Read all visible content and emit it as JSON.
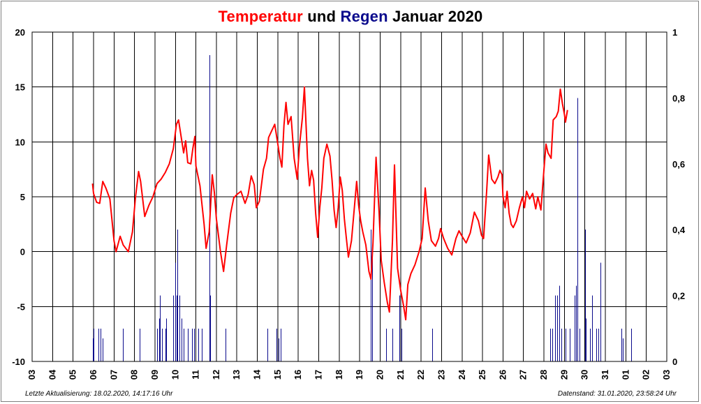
{
  "title": {
    "part1": "Temperatur",
    "part2": " und ",
    "part3": "Regen",
    "part4": " Januar 2020"
  },
  "colors": {
    "temperature": "#ff0000",
    "rain": "#0a0a8c",
    "grid": "#000000"
  },
  "footer": {
    "left": "Letzte Aktualisierung: 18.02.2020, 14:17:16 Uhr",
    "right": "Datenstand: 31.01.2020, 23:58:24 Uhr"
  },
  "chart_data": {
    "type": "line",
    "title": "Temperatur und Regen Januar 2020",
    "x_tick_labels": [
      "03",
      "04",
      "05",
      "06",
      "07",
      "08",
      "09",
      "10",
      "11",
      "12",
      "13",
      "14",
      "15",
      "16",
      "17",
      "18",
      "19",
      "20",
      "21",
      "22",
      "23",
      "24",
      "25",
      "26",
      "27",
      "28",
      "29",
      "30",
      "31",
      "01",
      "02",
      "03"
    ],
    "left_axis": {
      "ylim": [
        -10,
        20
      ],
      "ticks": [
        -10,
        -5,
        0,
        5,
        10,
        15,
        20
      ],
      "tick_labels": [
        "-10",
        "-5",
        "0",
        "5",
        "10",
        "15",
        "20"
      ]
    },
    "right_axis": {
      "ylim": [
        0,
        1
      ],
      "ticks": [
        0,
        0.2,
        0.4,
        0.6,
        0.8,
        1
      ],
      "tick_labels": [
        "0",
        "0,2",
        "0,4",
        "0,6",
        "0,8",
        "1"
      ]
    },
    "grid": true,
    "series": [
      {
        "name": "Temperatur",
        "axis": "left",
        "points": [
          [
            4.95,
            6.2
          ],
          [
            5.0,
            5.3
          ],
          [
            5.15,
            4.5
          ],
          [
            5.3,
            4.4
          ],
          [
            5.45,
            6.4
          ],
          [
            5.6,
            5.8
          ],
          [
            5.8,
            4.8
          ],
          [
            6.0,
            1.0
          ],
          [
            6.1,
            0.0
          ],
          [
            6.3,
            1.4
          ],
          [
            6.45,
            0.6
          ],
          [
            6.7,
            0.0
          ],
          [
            6.9,
            1.8
          ],
          [
            7.05,
            5.0
          ],
          [
            7.2,
            7.3
          ],
          [
            7.3,
            6.4
          ],
          [
            7.5,
            3.2
          ],
          [
            7.7,
            4.2
          ],
          [
            7.9,
            5.0
          ],
          [
            8.1,
            6.2
          ],
          [
            8.3,
            6.6
          ],
          [
            8.5,
            7.2
          ],
          [
            8.7,
            8.0
          ],
          [
            8.9,
            9.4
          ],
          [
            9.05,
            11.6
          ],
          [
            9.15,
            12.0
          ],
          [
            9.3,
            10.2
          ],
          [
            9.4,
            9.0
          ],
          [
            9.5,
            10.1
          ],
          [
            9.6,
            8.1
          ],
          [
            9.75,
            8.0
          ],
          [
            9.85,
            9.4
          ],
          [
            9.95,
            10.5
          ],
          [
            10.0,
            7.8
          ],
          [
            10.2,
            6.0
          ],
          [
            10.4,
            2.5
          ],
          [
            10.5,
            0.3
          ],
          [
            10.65,
            1.8
          ],
          [
            10.8,
            7.0
          ],
          [
            10.9,
            5.4
          ],
          [
            11.0,
            3.0
          ],
          [
            11.2,
            0.0
          ],
          [
            11.35,
            -1.8
          ],
          [
            11.5,
            0.6
          ],
          [
            11.7,
            3.5
          ],
          [
            11.85,
            4.9
          ],
          [
            12.0,
            5.2
          ],
          [
            12.2,
            5.5
          ],
          [
            12.4,
            4.4
          ],
          [
            12.55,
            5.2
          ],
          [
            12.7,
            6.9
          ],
          [
            12.85,
            6.1
          ],
          [
            12.95,
            4.0
          ],
          [
            13.1,
            4.6
          ],
          [
            13.3,
            7.5
          ],
          [
            13.45,
            8.5
          ],
          [
            13.55,
            10.4
          ],
          [
            13.7,
            11.0
          ],
          [
            13.85,
            11.6
          ],
          [
            14.0,
            9.8
          ],
          [
            14.1,
            8.6
          ],
          [
            14.2,
            7.7
          ],
          [
            14.3,
            11.5
          ],
          [
            14.4,
            13.6
          ],
          [
            14.5,
            11.6
          ],
          [
            14.65,
            12.3
          ],
          [
            14.8,
            8.5
          ],
          [
            14.95,
            6.6
          ],
          [
            15.05,
            9.5
          ],
          [
            15.2,
            12.2
          ],
          [
            15.3,
            15.0
          ],
          [
            15.45,
            8.5
          ],
          [
            15.55,
            6.0
          ],
          [
            15.65,
            7.4
          ],
          [
            15.75,
            6.5
          ],
          [
            15.85,
            3.5
          ],
          [
            15.95,
            1.3
          ],
          [
            16.05,
            4.0
          ],
          [
            16.15,
            5.8
          ],
          [
            16.25,
            8.5
          ],
          [
            16.4,
            9.8
          ],
          [
            16.55,
            8.7
          ],
          [
            16.65,
            6.5
          ],
          [
            16.75,
            3.8
          ],
          [
            16.85,
            2.2
          ],
          [
            16.95,
            4.0
          ],
          [
            17.05,
            6.8
          ],
          [
            17.15,
            5.6
          ],
          [
            17.25,
            3.0
          ],
          [
            17.35,
            1.2
          ],
          [
            17.45,
            -0.5
          ],
          [
            17.6,
            1.0
          ],
          [
            17.75,
            4.2
          ],
          [
            17.85,
            6.4
          ],
          [
            17.95,
            4.2
          ],
          [
            18.05,
            2.8
          ],
          [
            18.15,
            1.8
          ],
          [
            18.3,
            0.6
          ],
          [
            18.45,
            -1.8
          ],
          [
            18.55,
            -2.5
          ],
          [
            18.65,
            0.8
          ],
          [
            18.8,
            8.6
          ],
          [
            18.95,
            3.5
          ],
          [
            19.05,
            -0.8
          ],
          [
            19.2,
            -2.8
          ],
          [
            19.35,
            -4.6
          ],
          [
            19.45,
            -5.5
          ],
          [
            19.6,
            1.0
          ],
          [
            19.7,
            7.9
          ],
          [
            19.85,
            -1.5
          ],
          [
            20.0,
            -3.5
          ],
          [
            20.15,
            -5.0
          ],
          [
            20.25,
            -6.2
          ],
          [
            20.35,
            -3.0
          ],
          [
            20.5,
            -2.0
          ],
          [
            20.7,
            -1.2
          ],
          [
            20.9,
            0.0
          ],
          [
            21.05,
            1.2
          ],
          [
            21.2,
            5.8
          ],
          [
            21.35,
            2.8
          ],
          [
            21.5,
            1.0
          ],
          [
            21.7,
            0.5
          ],
          [
            21.85,
            1.2
          ],
          [
            21.95,
            2.1
          ],
          [
            22.1,
            1.2
          ],
          [
            22.3,
            0.3
          ],
          [
            22.5,
            -0.3
          ],
          [
            22.7,
            1.2
          ],
          [
            22.85,
            1.9
          ],
          [
            23.0,
            1.4
          ],
          [
            23.2,
            0.8
          ],
          [
            23.4,
            1.7
          ],
          [
            23.6,
            3.6
          ],
          [
            23.8,
            2.8
          ],
          [
            23.95,
            1.5
          ],
          [
            24.05,
            1.2
          ],
          [
            24.2,
            5.5
          ],
          [
            24.3,
            8.8
          ],
          [
            24.45,
            6.6
          ],
          [
            24.6,
            6.2
          ],
          [
            24.75,
            6.8
          ],
          [
            24.85,
            7.4
          ],
          [
            24.95,
            7.0
          ],
          [
            25.0,
            5.0
          ],
          [
            25.1,
            4.0
          ],
          [
            25.2,
            5.5
          ],
          [
            25.3,
            3.5
          ],
          [
            25.4,
            2.5
          ],
          [
            25.5,
            2.2
          ],
          [
            25.65,
            2.8
          ],
          [
            25.8,
            4.0
          ],
          [
            25.95,
            5.0
          ],
          [
            26.05,
            4.0
          ],
          [
            26.15,
            5.5
          ],
          [
            26.3,
            4.8
          ],
          [
            26.45,
            5.3
          ],
          [
            26.6,
            3.9
          ],
          [
            26.7,
            5.0
          ],
          [
            26.85,
            3.8
          ],
          [
            27.0,
            7.5
          ],
          [
            27.1,
            9.8
          ],
          [
            27.2,
            9.0
          ],
          [
            27.35,
            8.5
          ],
          [
            27.45,
            12.0
          ],
          [
            27.6,
            12.3
          ],
          [
            27.7,
            12.8
          ],
          [
            27.8,
            14.8
          ],
          [
            27.9,
            13.5
          ],
          [
            28.0,
            12.5
          ],
          [
            28.05,
            11.8
          ],
          [
            28.15,
            12.9
          ]
        ]
      },
      {
        "name": "Regen",
        "axis": "right",
        "points": [
          [
            4.95,
            0.07
          ],
          [
            5.0,
            0.1
          ],
          [
            5.25,
            0.1
          ],
          [
            5.35,
            0.1
          ],
          [
            5.45,
            0.07
          ],
          [
            6.45,
            0.1
          ],
          [
            7.25,
            0.1
          ],
          [
            8.1,
            0.1
          ],
          [
            8.2,
            0.13
          ],
          [
            8.25,
            0.2
          ],
          [
            8.35,
            0.1
          ],
          [
            8.5,
            0.1
          ],
          [
            8.55,
            0.13
          ],
          [
            8.9,
            0.2
          ],
          [
            9.0,
            0.3
          ],
          [
            9.05,
            0.2
          ],
          [
            9.1,
            0.4
          ],
          [
            9.2,
            0.2
          ],
          [
            9.3,
            0.13
          ],
          [
            9.4,
            0.1
          ],
          [
            9.6,
            0.1
          ],
          [
            9.8,
            0.1
          ],
          [
            9.9,
            0.1
          ],
          [
            10.1,
            0.1
          ],
          [
            10.3,
            0.1
          ],
          [
            10.65,
            0.93
          ],
          [
            10.7,
            0.2
          ],
          [
            11.45,
            0.1
          ],
          [
            13.5,
            0.1
          ],
          [
            13.95,
            0.1
          ],
          [
            14.05,
            0.07
          ],
          [
            14.15,
            0.1
          ],
          [
            18.55,
            0.4
          ],
          [
            18.6,
            0.33
          ],
          [
            19.3,
            0.1
          ],
          [
            19.6,
            0.1
          ],
          [
            19.95,
            0.2
          ],
          [
            20.05,
            0.1
          ],
          [
            21.55,
            0.1
          ],
          [
            27.3,
            0.1
          ],
          [
            27.4,
            0.1
          ],
          [
            27.55,
            0.2
          ],
          [
            27.65,
            0.2
          ],
          [
            27.75,
            0.23
          ],
          [
            27.85,
            0.1
          ],
          [
            28.05,
            0.1
          ],
          [
            28.25,
            0.1
          ],
          [
            28.5,
            0.2
          ],
          [
            28.55,
            0.23
          ],
          [
            28.65,
            0.8
          ],
          [
            28.75,
            0.1
          ],
          [
            29.0,
            0.4
          ],
          [
            29.05,
            0.13
          ],
          [
            29.25,
            0.1
          ],
          [
            29.35,
            0.2
          ],
          [
            29.55,
            0.1
          ],
          [
            29.65,
            0.1
          ],
          [
            29.75,
            0.3
          ],
          [
            30.8,
            0.1
          ],
          [
            30.85,
            0.07
          ],
          [
            31.25,
            0.1
          ]
        ]
      }
    ]
  }
}
